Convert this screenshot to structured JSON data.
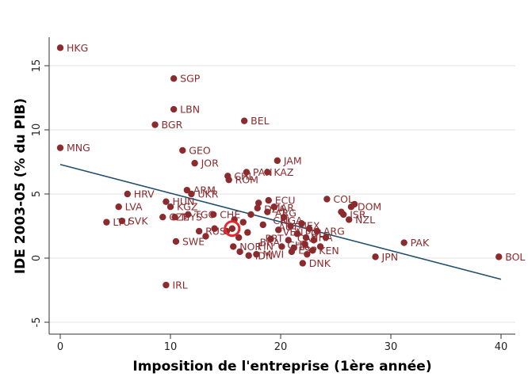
{
  "chart_data": {
    "type": "scatter",
    "xlabel": "Imposition de l'entreprise (1ère année)",
    "ylabel": "IDE 2003-05 (% du PIB)",
    "xlim": [
      0,
      40
    ],
    "ylim": [
      -5,
      17
    ],
    "xticks": [
      "0",
      "10",
      "20",
      "30",
      "40"
    ],
    "yticks": [
      "-5",
      "0",
      "5",
      "10",
      "15"
    ],
    "grid": "horizontal",
    "colors": {
      "point": "#8B2B2E",
      "fit_line": "#1F4E6E",
      "highlight": "#E8262B",
      "grid": "#E3E3E3"
    },
    "points": [
      {
        "label": "HKG",
        "x": 0.0,
        "y": 16.4
      },
      {
        "label": "SGP",
        "x": 10.3,
        "y": 14.0
      },
      {
        "label": "LBN",
        "x": 10.3,
        "y": 11.6
      },
      {
        "label": "BGR",
        "x": 8.6,
        "y": 10.4
      },
      {
        "label": "BEL",
        "x": 16.7,
        "y": 10.7
      },
      {
        "label": "MNG",
        "x": 0.0,
        "y": 8.6
      },
      {
        "label": "GEO",
        "x": 11.1,
        "y": 8.4
      },
      {
        "label": "JOR",
        "x": 12.2,
        "y": 7.4
      },
      {
        "label": "JAM",
        "x": 19.7,
        "y": 7.6
      },
      {
        "label": "PAN",
        "x": 16.9,
        "y": 6.7
      },
      {
        "label": "KAZ",
        "x": 18.8,
        "y": 6.7
      },
      {
        "label": "CHL",
        "x": 15.2,
        "y": 6.4
      },
      {
        "label": "ROM",
        "x": 15.3,
        "y": 6.1
      },
      {
        "label": "ARM",
        "x": 11.5,
        "y": 5.3
      },
      {
        "label": "UKR",
        "x": 11.9,
        "y": 5.0
      },
      {
        "label": "HRV",
        "x": 6.1,
        "y": 5.0
      },
      {
        "label": "HUN",
        "x": 9.6,
        "y": 4.4
      },
      {
        "label": "KGZ",
        "x": 10.0,
        "y": 4.0
      },
      {
        "label": "LVA",
        "x": 5.3,
        "y": 4.0
      },
      {
        "label": "CZE",
        "x": 9.3,
        "y": 3.2
      },
      {
        "label": "MYS",
        "x": 10.4,
        "y": 3.2
      },
      {
        "label": "TGO",
        "x": 11.6,
        "y": 3.4
      },
      {
        "label": "CHE",
        "x": 13.9,
        "y": 3.4
      },
      {
        "label": "SVK",
        "x": 5.6,
        "y": 2.9
      },
      {
        "label": "LTU",
        "x": 4.2,
        "y": 2.8
      },
      {
        "label": "RUS",
        "x": 12.6,
        "y": 2.1
      },
      {
        "label": "SWE",
        "x": 10.5,
        "y": 1.3
      },
      {
        "label": "ECU",
        "x": 18.9,
        "y": 4.5
      },
      {
        "label": "COL",
        "x": 24.2,
        "y": 4.6
      },
      {
        "label": "DOM",
        "x": 26.4,
        "y": 4.0
      },
      {
        "label": "NZL",
        "x": 26.2,
        "y": 3.0
      },
      {
        "label": "ARG",
        "x": 23.3,
        "y": 2.1
      },
      {
        "label": "THA",
        "x": 22.3,
        "y": 1.6
      },
      {
        "label": "ISR",
        "x": 25.7,
        "y": 3.4
      },
      {
        "label": "PAK",
        "x": 31.2,
        "y": 1.2
      },
      {
        "label": "JPN",
        "x": 28.6,
        "y": 0.1
      },
      {
        "label": "BOL",
        "x": 39.8,
        "y": 0.1
      },
      {
        "label": "DNK",
        "x": 22.0,
        "y": -0.4
      },
      {
        "label": "IRL",
        "x": 9.6,
        "y": -2.1
      },
      {
        "label": "MWI",
        "x": 17.8,
        "y": 0.3
      },
      {
        "label": "IDN",
        "x": 17.1,
        "y": 0.2
      },
      {
        "label": "KEN",
        "x": 22.9,
        "y": 0.6
      },
      {
        "label": "NOR",
        "x": 15.7,
        "y": 0.9
      },
      {
        "label": "",
        "x": 13.2,
        "y": 1.7
      },
      {
        "label": "",
        "x": 14.0,
        "y": 2.3
      },
      {
        "label": "",
        "x": 15.1,
        "y": 2.1
      },
      {
        "label": "",
        "x": 15.8,
        "y": 3.0
      },
      {
        "label": "",
        "x": 16.2,
        "y": 1.6
      },
      {
        "label": "",
        "x": 16.6,
        "y": 2.8
      },
      {
        "label": "",
        "x": 17.3,
        "y": 3.4
      },
      {
        "label": "",
        "x": 17.9,
        "y": 3.9
      },
      {
        "label": "",
        "x": 18.0,
        "y": 4.3
      },
      {
        "label": "",
        "x": 18.4,
        "y": 2.6
      },
      {
        "label": "",
        "x": 18.8,
        "y": 3.6
      },
      {
        "label": "",
        "x": 19.1,
        "y": 1.5
      },
      {
        "label": "",
        "x": 19.4,
        "y": 4.0
      },
      {
        "label": "",
        "x": 19.8,
        "y": 2.2
      },
      {
        "label": "",
        "x": 20.1,
        "y": 0.9
      },
      {
        "label": "",
        "x": 20.3,
        "y": 3.2
      },
      {
        "label": "",
        "x": 20.7,
        "y": 1.4
      },
      {
        "label": "",
        "x": 20.9,
        "y": 2.5
      },
      {
        "label": "",
        "x": 21.2,
        "y": 0.8
      },
      {
        "label": "",
        "x": 21.5,
        "y": 1.9
      },
      {
        "label": "",
        "x": 21.9,
        "y": 2.7
      },
      {
        "label": "",
        "x": 22.2,
        "y": 1.1
      },
      {
        "label": "",
        "x": 22.6,
        "y": 2.3
      },
      {
        "label": "",
        "x": 23.0,
        "y": 1.4
      },
      {
        "label": "",
        "x": 23.6,
        "y": 0.9
      },
      {
        "label": "",
        "x": 24.1,
        "y": 1.6
      },
      {
        "label": "",
        "x": 25.5,
        "y": 3.6
      },
      {
        "label": "",
        "x": 26.7,
        "y": 4.2
      },
      {
        "label": "",
        "x": 16.3,
        "y": 0.5
      },
      {
        "label": "",
        "x": 17.0,
        "y": 2.0
      },
      {
        "label": "",
        "x": 21.0,
        "y": 0.5
      },
      {
        "label": "",
        "x": 22.4,
        "y": 0.3
      }
    ],
    "dense_labels": [
      {
        "text": "ARG",
        "x": 19.5,
        "y": 3.5
      },
      {
        "text": "CRI",
        "x": 19.3,
        "y": 2.9
      },
      {
        "text": "NGA",
        "x": 20.0,
        "y": 2.9
      },
      {
        "text": "AUT",
        "x": 19.8,
        "y": 2.4
      },
      {
        "text": "VEN",
        "x": 20.2,
        "y": 2.0
      },
      {
        "text": "MEX",
        "x": 21.6,
        "y": 2.5
      },
      {
        "text": "CAN",
        "x": 21.5,
        "y": 1.5
      },
      {
        "text": "POL",
        "x": 22.2,
        "y": 1.9
      },
      {
        "text": "PRT",
        "x": 18.6,
        "y": 1.5
      },
      {
        "text": "GHA",
        "x": 20.6,
        "y": 1.0
      },
      {
        "text": "ITA",
        "x": 21.3,
        "y": 0.9
      },
      {
        "text": "BRA",
        "x": 18.1,
        "y": 1.2
      },
      {
        "text": "FIN",
        "x": 17.9,
        "y": 0.9
      },
      {
        "text": "ESP",
        "x": 21.6,
        "y": 0.6
      },
      {
        "text": "MAR",
        "x": 19.2,
        "y": 3.9
      },
      {
        "text": "DZA",
        "x": 18.5,
        "y": 3.8
      }
    ],
    "highlight": {
      "x": 15.6,
      "y": 2.3
    },
    "fit_line": {
      "x1": 0,
      "y1": 7.3,
      "x2": 40,
      "y2": -1.65
    }
  }
}
